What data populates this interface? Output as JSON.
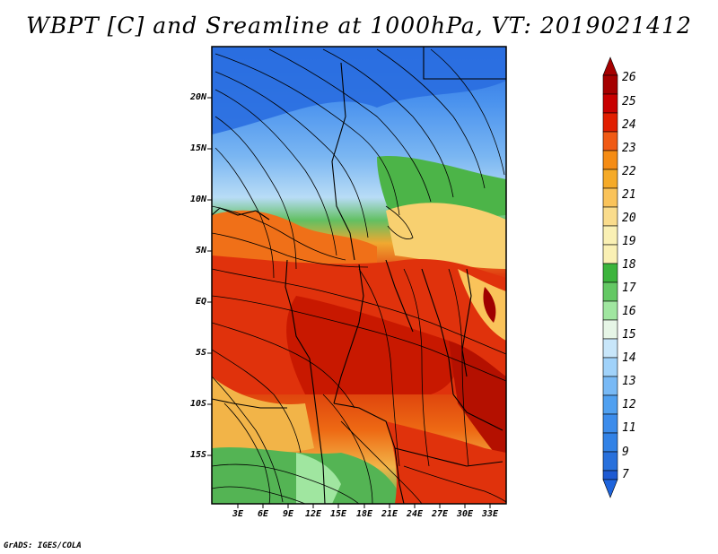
{
  "title": "WBPT [C] and Sreamline at 1000hPa, VT: 2019021412",
  "footer": "GrADS: IGES/COLA",
  "map": {
    "lat_ticks": [
      "20N",
      "15N",
      "10N",
      "5N",
      "EQ",
      "5S",
      "10S",
      "15S"
    ],
    "lon_ticks": [
      "3E",
      "6E",
      "9E",
      "12E",
      "15E",
      "18E",
      "21E",
      "24E",
      "27E",
      "30E",
      "33E"
    ]
  },
  "colorbar": {
    "labels": [
      "26",
      "25",
      "24",
      "23",
      "22",
      "21",
      "20",
      "19",
      "18",
      "17",
      "16",
      "15",
      "14",
      "13",
      "12",
      "11",
      "9",
      "7"
    ],
    "colors": [
      "#a50000",
      "#c80000",
      "#e11e00",
      "#f05a14",
      "#f58c14",
      "#f5aa28",
      "#fac35a",
      "#fadc8c",
      "#faf0b4",
      "#3cb43c",
      "#64c864",
      "#a0e6a0",
      "#e6f5e6",
      "#c8e6fa",
      "#a0d2fa",
      "#78b9f5",
      "#50a0f0",
      "#3282e6",
      "#1e5ad2"
    ]
  }
}
